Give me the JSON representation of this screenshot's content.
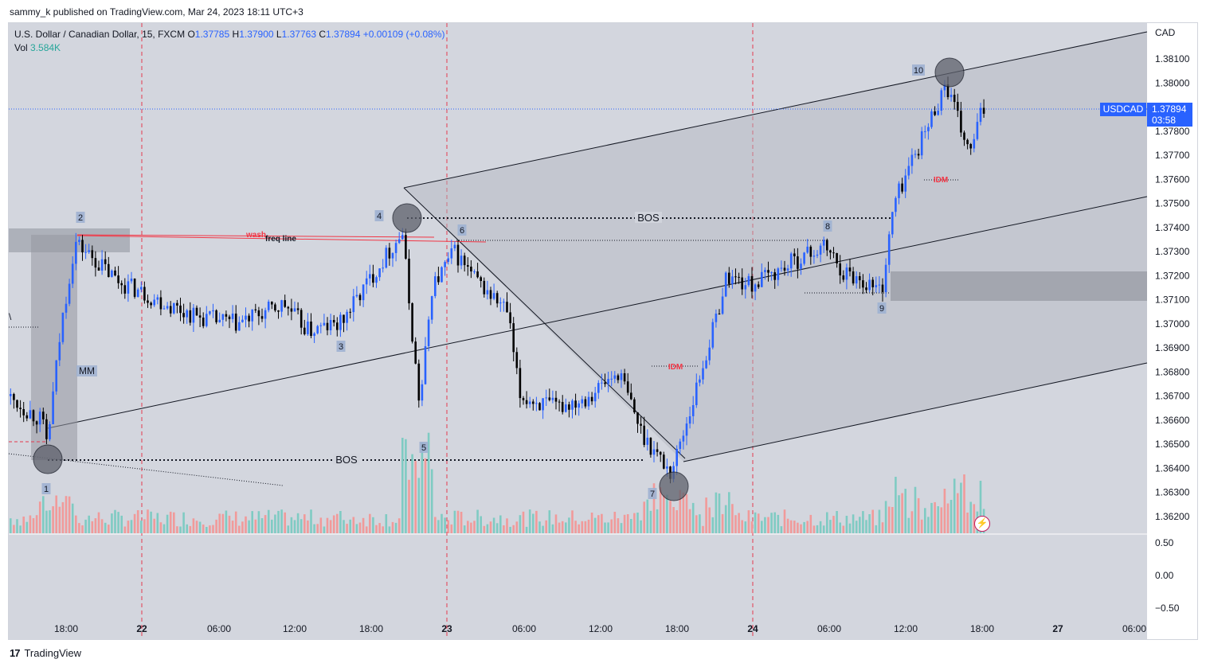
{
  "header": {
    "publisher_line": "sammy_k published on TradingView.com, Mar 24, 2023 18:11 UTC+3"
  },
  "legend": {
    "symbol": "U.S. Dollar / Canadian Dollar, 15, FXCM",
    "open_label": "O",
    "open": "1.37785",
    "high_label": "H",
    "high": "1.37900",
    "low_label": "L",
    "low": "1.37763",
    "close_label": "C",
    "close": "1.37894",
    "change": "+0.00109 (+0.08%)",
    "vol_label": "Vol",
    "vol": "3.584K"
  },
  "price_scale": {
    "currency": "CAD",
    "labels": [
      "1.38100",
      "1.38000",
      "1.37900",
      "1.37800",
      "1.37700",
      "1.37600",
      "1.37500",
      "1.37400",
      "1.37300",
      "1.37200",
      "1.37100",
      "1.37000",
      "1.36900",
      "1.36800",
      "1.36700",
      "1.36600",
      "1.36500",
      "1.36400",
      "1.36300",
      "1.36200"
    ],
    "current_symbol": "USDCAD",
    "current_price": "1.37894",
    "countdown": "03:58"
  },
  "volume_scale": {
    "labels": [
      "0.50",
      "0.00",
      "−0.50"
    ]
  },
  "time_axis": {
    "labels": [
      "18:00",
      "22",
      "06:00",
      "12:00",
      "18:00",
      "23",
      "06:00",
      "12:00",
      "18:00",
      "24",
      "06:00",
      "12:00",
      "18:00",
      "27",
      "06:00"
    ],
    "bold": [
      "22",
      "23",
      "24",
      "27"
    ]
  },
  "annotations": {
    "points": [
      "1",
      "2",
      "3",
      "4",
      "5",
      "6",
      "7",
      "8",
      "9",
      "10"
    ],
    "bos_label": "BOS",
    "idm_label": "IDM",
    "mm_label": "MM",
    "wash_label": "wash",
    "freq_label": "freq line",
    "left_edge_label": "\\"
  },
  "colors": {
    "up_candle": "#2962ff",
    "down_candle": "#000000",
    "vol_up": "#7fcbc3",
    "vol_down": "#f19a9a",
    "accent": "#2962ff",
    "session_line": "#e5394f"
  },
  "footer": {
    "brand": "TradingView"
  },
  "chart_data": {
    "type": "candlestick",
    "symbol": "USDCAD",
    "timeframe": "15",
    "ylim": [
      1.3615,
      1.382
    ],
    "points_approx": [
      {
        "label": "1",
        "price": 1.3644
      },
      {
        "label": "2",
        "price": 1.3737
      },
      {
        "label": "3",
        "price": 1.3697
      },
      {
        "label": "4",
        "price": 1.3744
      },
      {
        "label": "5",
        "price": 1.3663
      },
      {
        "label": "6",
        "price": 1.3734
      },
      {
        "label": "7",
        "price": 1.3634
      },
      {
        "label": "8",
        "price": 1.3736
      },
      {
        "label": "9",
        "price": 1.3712
      },
      {
        "label": "10",
        "price": 1.3804
      }
    ]
  }
}
